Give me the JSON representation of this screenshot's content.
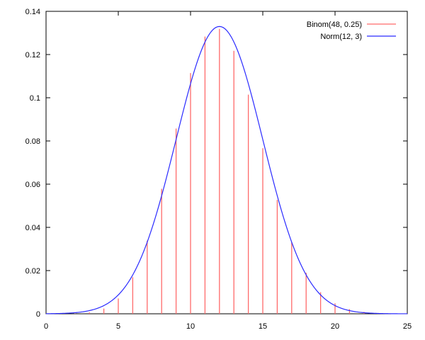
{
  "chart_data": {
    "type": "line",
    "title": "",
    "xlabel": "",
    "ylabel": "",
    "xlim": [
      0,
      25
    ],
    "ylim": [
      0,
      0.14
    ],
    "grid": false,
    "legend_position": "top-right",
    "xticks": [
      "0",
      "5",
      "10",
      "15",
      "20",
      "25"
    ],
    "yticks": [
      "0",
      "0.02",
      "0.04",
      "0.06",
      "0.08",
      "0.1",
      "0.12",
      "0.14"
    ],
    "series": [
      {
        "name": "Binom(48, 0.25)",
        "style": "impulses",
        "color": "#ff6a6a",
        "x": [
          0,
          1,
          2,
          3,
          4,
          5,
          6,
          7,
          8,
          9,
          10,
          11,
          12,
          13,
          14,
          15,
          16,
          17,
          18,
          19,
          20,
          21,
          22,
          23,
          24,
          25
        ],
        "values": [
          1e-06,
          1.6e-05,
          0.000126,
          0.000645,
          0.002417,
          0.007089,
          0.016935,
          0.03387,
          0.05786,
          0.08572,
          0.11144,
          0.12832,
          0.13189,
          0.12174,
          0.10145,
          0.07665,
          0.0527,
          0.03307,
          0.01898,
          0.00999,
          0.00483,
          0.002146,
          0.000878,
          0.000331,
          0.000115,
          3.7e-05
        ]
      },
      {
        "name": "Norm(12, 3)",
        "style": "line",
        "color": "#2a2aff",
        "mean": 12,
        "sd": 3
      }
    ]
  }
}
